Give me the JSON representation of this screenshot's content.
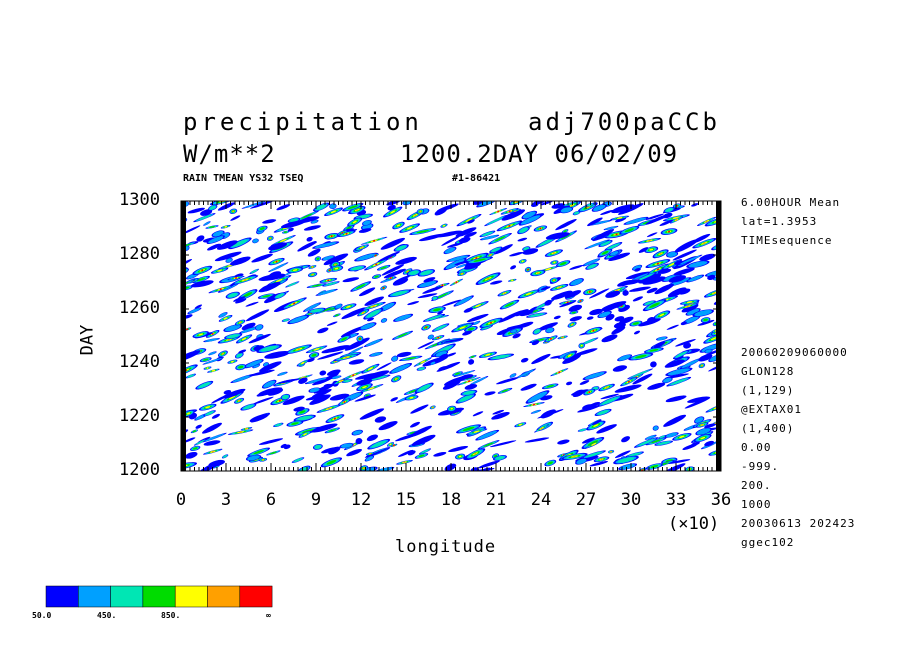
{
  "header": {
    "var_name": "precipitation",
    "run_name": "adj700paCCb",
    "units": "W/m**2",
    "time_info": "1200.2DAY 06/02/09",
    "sub_left": "RAIN TMEAN YS32 TSEQ",
    "sub_right": "#1-86421"
  },
  "side_top": [
    "6.00HOUR Mean",
    "lat=1.3953",
    "TIMEsequence"
  ],
  "side_bottom": [
    "20060209060000",
    "GLON128",
    "(1,129)",
    "@EXTAX01",
    "(1,400)",
    "0.00",
    "-999.",
    "200.",
    "1000",
    "20030613 202423",
    "ggec102"
  ],
  "colorbar": {
    "colors": [
      "#0000ff",
      "#00a0ff",
      "#00e6b4",
      "#00dc00",
      "#ffff00",
      "#ffa000",
      "#ff0000"
    ],
    "labels": [
      "50.0",
      "450.",
      "850.",
      "∞"
    ]
  },
  "chart_data": {
    "type": "heatmap",
    "title": "precipitation",
    "xlabel": "longitude",
    "ylabel": "DAY",
    "x_multiplier": "(×10)",
    "xlim": [
      0,
      36
    ],
    "ylim": [
      1200,
      1300
    ],
    "x_ticks": [
      "0",
      "3",
      "6",
      "9",
      "12",
      "15",
      "18",
      "21",
      "24",
      "27",
      "30",
      "33",
      "36"
    ],
    "y_ticks": [
      "1200",
      "1220",
      "1240",
      "1260",
      "1280",
      "1300"
    ],
    "contour_levels": [
      50,
      250,
      450,
      650,
      850,
      1050
    ],
    "contour_colors": [
      "#0000ff",
      "#00a0ff",
      "#00e6b4",
      "#00dc00",
      "#ffff00",
      "#ffa000",
      "#ff0000"
    ]
  }
}
